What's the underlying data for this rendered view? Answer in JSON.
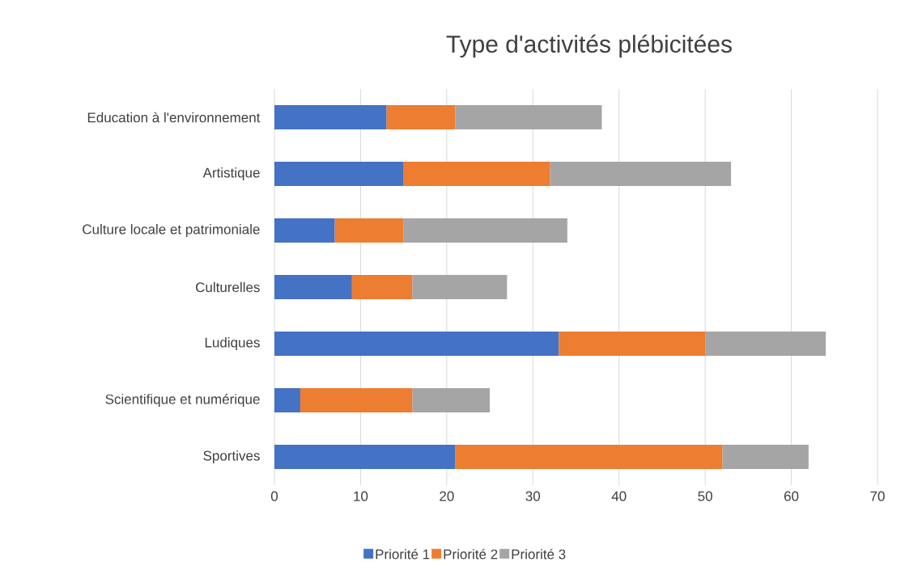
{
  "chart_data": {
    "type": "bar",
    "orientation": "horizontal",
    "stacked": true,
    "title": "Type d'activités plébicitées",
    "categories": [
      "Education à l'environnement",
      "Artistique",
      "Culture locale et patrimoniale",
      "Culturelles",
      "Ludiques",
      "Scientifique et numérique",
      "Sportives"
    ],
    "series": [
      {
        "name": "Priorité 1",
        "color": "#4472c4",
        "values": [
          13,
          15,
          7,
          9,
          33,
          3,
          21
        ]
      },
      {
        "name": "Priorité 2",
        "color": "#ed7d31",
        "values": [
          8,
          17,
          8,
          7,
          17,
          13,
          31
        ]
      },
      {
        "name": "Priorité 3",
        "color": "#a5a5a5",
        "values": [
          17,
          21,
          19,
          11,
          14,
          9,
          10
        ]
      }
    ],
    "xlim": [
      0,
      70
    ],
    "xticks": [
      0,
      10,
      20,
      30,
      40,
      50,
      60,
      70
    ],
    "grid": "x",
    "legend": "bottom"
  }
}
